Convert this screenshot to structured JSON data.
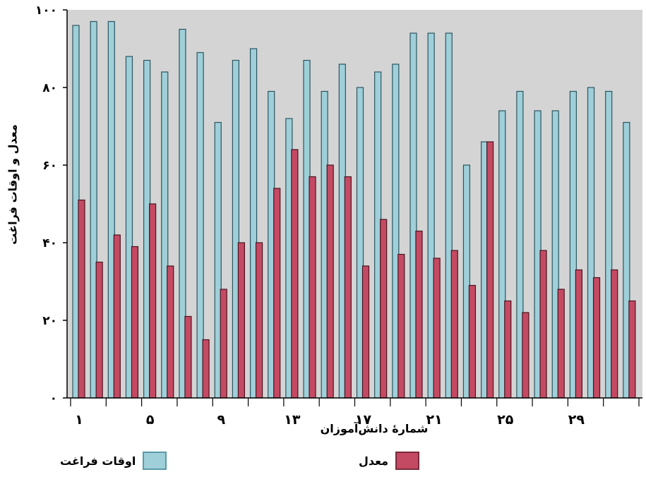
{
  "chart_data": {
    "type": "bar",
    "categories": [
      "1",
      "2",
      "3",
      "4",
      "5",
      "6",
      "7",
      "8",
      "9",
      "10",
      "11",
      "12",
      "13",
      "14",
      "15",
      "16",
      "17",
      "18",
      "19",
      "20",
      "21",
      "22",
      "23",
      "24",
      "25",
      "26",
      "27",
      "28",
      "29",
      "30",
      "31",
      "32"
    ],
    "xticks_shown": [
      "۱",
      "۵",
      "۹",
      "۱۳",
      "۱۷",
      "۲۱",
      "۲۵",
      "۲۹"
    ],
    "yticks": [
      "۰",
      "۲۰",
      "۴۰",
      "۶۰",
      "۸۰",
      "۱۰۰"
    ],
    "ylim": [
      0,
      100
    ],
    "xlabel": "شمارهٔ دانش‌آموزان",
    "ylabel": "معدل و اوقات فراغت",
    "series": [
      {
        "name": "اوقات فراغت",
        "color": "#9fcfd9",
        "values": [
          96,
          97,
          97,
          88,
          87,
          84,
          95,
          89,
          71,
          87,
          90,
          79,
          72,
          87,
          79,
          86,
          80,
          84,
          86,
          94,
          94,
          94,
          60,
          66,
          74,
          79,
          74,
          74,
          79,
          80,
          79,
          71
        ]
      },
      {
        "name": "معدل",
        "color": "#c44a63",
        "values": [
          51,
          35,
          42,
          39,
          50,
          34,
          21,
          15,
          28,
          40,
          40,
          54,
          64,
          57,
          60,
          57,
          34,
          46,
          37,
          43,
          36,
          38,
          29,
          66,
          25,
          22,
          38,
          28,
          33,
          31,
          33,
          25
        ]
      }
    ],
    "legend_position": "bottom",
    "background": "#d4d4d4"
  }
}
